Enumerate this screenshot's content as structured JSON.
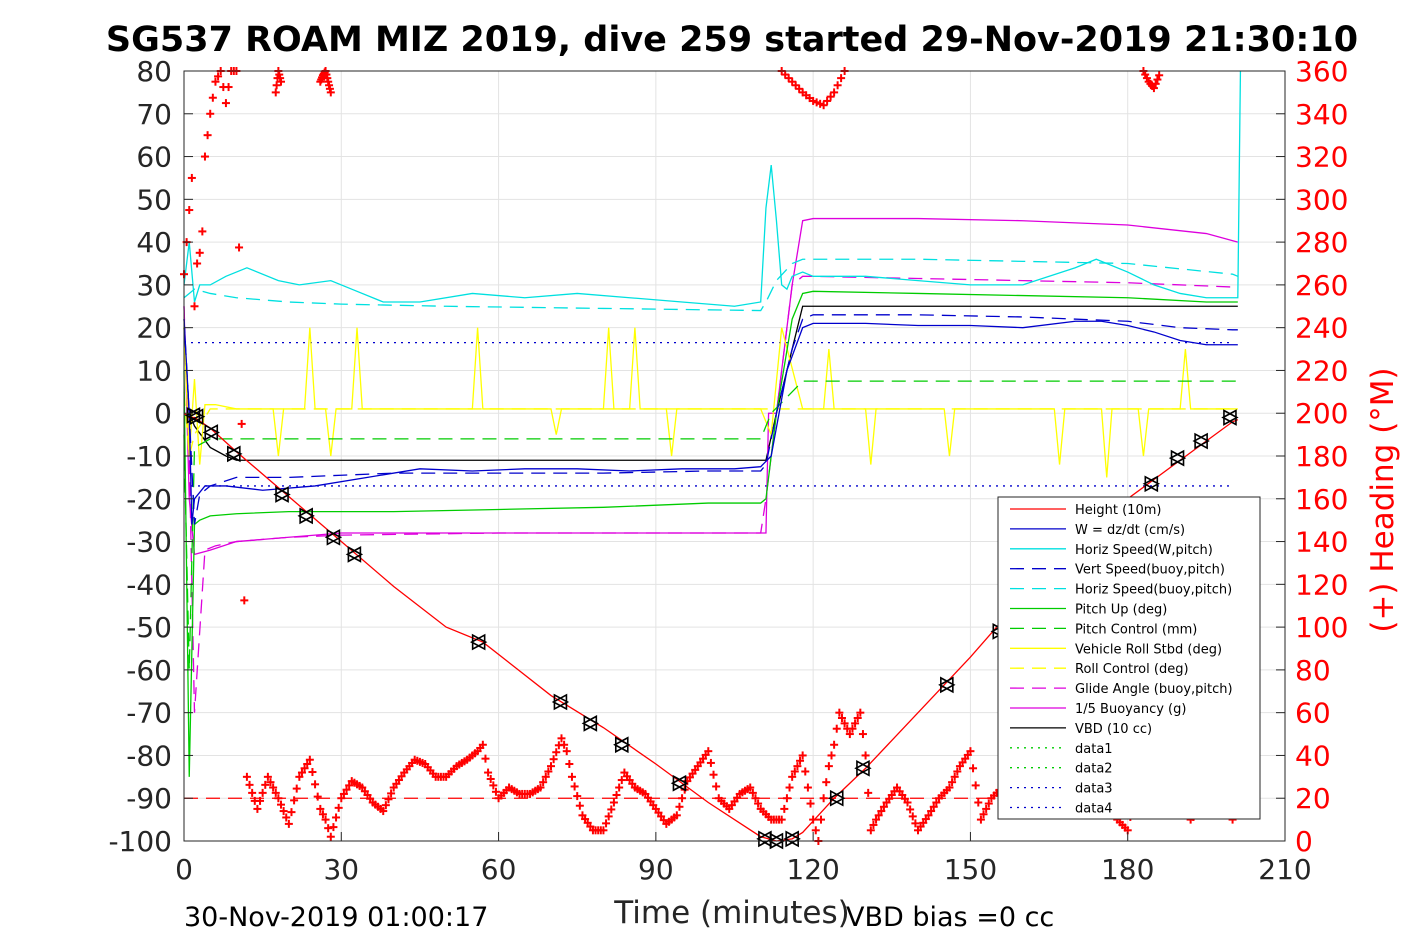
{
  "chart_data": {
    "type": "line",
    "title": "SG537 ROAM MIZ 2019, dive 259 started 29-Nov-2019 21:30:10",
    "xlabel": "Time (minutes)",
    "ylabel": "",
    "y2label": "(+) Heading (°M)",
    "xlim": [
      0,
      210
    ],
    "ylim": [
      -100,
      80
    ],
    "y2lim": [
      0,
      360
    ],
    "x_ticks": [
      0,
      30,
      60,
      90,
      120,
      150,
      180,
      210
    ],
    "y_ticks": [
      -100,
      -90,
      -80,
      -70,
      -60,
      -50,
      -40,
      -30,
      -20,
      -10,
      0,
      10,
      20,
      30,
      40,
      50,
      60,
      70,
      80
    ],
    "y2_ticks": [
      0,
      20,
      40,
      60,
      80,
      100,
      120,
      140,
      160,
      180,
      200,
      220,
      240,
      260,
      280,
      300,
      320,
      340,
      360
    ],
    "grid": true,
    "legend_position": "bottom-right",
    "footer_left": "30-Nov-2019 01:00:17",
    "footer_right": "VBD bias =0 cc",
    "colors": {
      "red": "#ff0000",
      "blue": "#0000cc",
      "cyan": "#00e0e0",
      "green": "#00cc00",
      "yellow": "#ffff00",
      "magenta": "#dd00dd",
      "black": "#000000"
    },
    "series": [
      {
        "name": "Height (10m)",
        "color": "#ff0000",
        "style": "solid",
        "x": [
          0,
          1,
          2,
          5,
          10,
          20,
          30,
          40,
          50,
          57,
          70,
          80,
          90,
          100,
          110,
          113,
          116,
          118,
          124,
          130,
          140,
          150,
          160,
          170,
          180,
          190,
          195,
          200,
          201
        ],
        "y": [
          0,
          -1,
          -1,
          -3.5,
          -9,
          -19.5,
          -30,
          -40.5,
          -50,
          -53.5,
          -66,
          -73.5,
          -82,
          -91,
          -99,
          -100,
          -99.5,
          -98,
          -90,
          -83,
          -70,
          -57,
          -43,
          -32,
          -20,
          -11,
          -6.5,
          -2,
          -1.5
        ]
      },
      {
        "name": "W = dz/dt (cm/s)",
        "color": "#0000cc",
        "style": "solid",
        "x": [
          0,
          1,
          1.5,
          2,
          4,
          8,
          15,
          25,
          35,
          45,
          55,
          65,
          75,
          85,
          95,
          105,
          110,
          112,
          115,
          118,
          120,
          130,
          140,
          150,
          160,
          170,
          175,
          180,
          185,
          190,
          195,
          200,
          201
        ],
        "y": [
          22,
          0,
          -26,
          -20,
          -17,
          -17,
          -18,
          -17,
          -15,
          -13,
          -13.5,
          -13,
          -13,
          -13.5,
          -13,
          -13,
          -12.5,
          -10,
          10,
          20,
          21,
          21,
          20.5,
          20.5,
          20,
          21.5,
          21.5,
          20.5,
          19,
          17,
          16,
          16,
          16
        ]
      },
      {
        "name": "Horiz Speed(W,pitch)",
        "color": "#00e0e0",
        "style": "solid",
        "x": [
          0,
          1,
          2,
          3,
          5,
          8,
          12,
          18,
          22,
          28,
          32,
          38,
          45,
          55,
          65,
          75,
          85,
          95,
          105,
          110,
          111,
          112,
          113,
          114,
          115,
          116,
          118,
          120,
          130,
          140,
          150,
          160,
          170,
          174,
          180,
          185,
          190,
          195,
          200,
          201,
          201.5
        ],
        "y": [
          30,
          40,
          26,
          30,
          30,
          32,
          34,
          31,
          30,
          31,
          29,
          26,
          26,
          28,
          27,
          28,
          27,
          26,
          25,
          26,
          48,
          58,
          45,
          30,
          29,
          32,
          33,
          32,
          32,
          31,
          30,
          30,
          34,
          36,
          33,
          30,
          28,
          27,
          27,
          27,
          80
        ]
      },
      {
        "name": "Vert Speed(buoy,pitch)",
        "color": "#0000cc",
        "style": "dashed",
        "x": [
          0,
          1,
          2,
          3,
          5,
          10,
          20,
          30,
          40,
          60,
          80,
          100,
          110,
          111,
          113,
          116,
          118,
          120,
          140,
          160,
          180,
          190,
          200,
          201
        ],
        "y": [
          22,
          0,
          -26,
          -19,
          -17,
          -15,
          -15,
          -14.5,
          -14,
          -14,
          -14,
          -13.5,
          -13.5,
          -12,
          0,
          15,
          22,
          23,
          23,
          22.5,
          21.5,
          20,
          19.5,
          19.5
        ]
      },
      {
        "name": "Horiz Speed(buoy,pitch)",
        "color": "#00e0e0",
        "style": "dashed",
        "x": [
          0,
          1,
          2,
          5,
          10,
          20,
          30,
          50,
          80,
          110,
          111,
          113,
          116,
          118,
          120,
          140,
          160,
          180,
          200,
          201
        ],
        "y": [
          27,
          28,
          29,
          28,
          27,
          26,
          25.5,
          25,
          24.5,
          24,
          26,
          31,
          35,
          36,
          36,
          36,
          35.5,
          35,
          32.5,
          32
        ]
      },
      {
        "name": "Pitch Up (deg)",
        "color": "#00cc00",
        "style": "solid",
        "x": [
          0,
          1,
          2,
          3,
          5,
          10,
          20,
          30,
          40,
          60,
          80,
          100,
          110,
          111,
          113,
          116,
          118,
          120,
          140,
          160,
          180,
          195,
          200,
          201
        ],
        "y": [
          10,
          -85,
          -26,
          -25,
          -24,
          -23.5,
          -23,
          -23,
          -23,
          -22.5,
          -22,
          -21,
          -21,
          -20,
          0,
          22,
          28,
          28.5,
          28,
          27.5,
          27,
          26,
          26,
          26
        ]
      },
      {
        "name": "Pitch Control (mm)",
        "color": "#00cc00",
        "style": "dashed",
        "x": [
          0,
          1,
          2,
          5,
          10,
          110,
          112,
          118,
          120,
          201
        ],
        "y": [
          -5,
          -60,
          -8,
          -6,
          -6,
          -6,
          0,
          7.5,
          7.5,
          7.5
        ]
      },
      {
        "name": "Vehicle Roll Stbd (deg)",
        "color": "#ffff00",
        "style": "solid",
        "x": [
          0,
          1,
          2,
          3,
          4,
          6,
          10,
          17,
          18,
          19,
          23,
          24,
          25,
          27,
          28,
          29,
          32,
          33,
          34,
          55,
          56,
          57,
          70,
          71,
          72,
          80,
          81,
          82,
          85,
          86,
          87,
          92,
          93,
          94,
          110,
          112,
          114,
          118,
          122,
          123,
          124,
          130,
          131,
          132,
          140,
          145,
          146,
          147,
          160,
          166,
          167,
          168,
          175,
          176,
          177,
          182,
          183,
          184,
          190,
          191,
          192,
          200,
          201
        ],
        "y": [
          20,
          -10,
          8,
          -12,
          2,
          2,
          1,
          1,
          -10,
          1,
          1,
          20,
          1,
          1,
          -10,
          1,
          1,
          20,
          1,
          1,
          20,
          1,
          1,
          -5,
          1,
          1,
          20,
          1,
          1,
          20,
          1,
          1,
          -10,
          1,
          1,
          -5,
          20,
          1,
          1,
          15,
          1,
          1,
          -12,
          1,
          1,
          1,
          -10,
          1,
          1,
          1,
          -12,
          1,
          1,
          -15,
          1,
          1,
          -10,
          1,
          1,
          15,
          1,
          1,
          1
        ]
      },
      {
        "name": "Roll Control (deg)",
        "color": "#ffff00",
        "style": "dashed",
        "x": [
          0,
          1,
          2,
          5,
          110,
          113,
          201
        ],
        "y": [
          5,
          -10,
          -5,
          1,
          1,
          1,
          1
        ]
      },
      {
        "name": "Glide Angle (buoy,pitch)",
        "color": "#dd00dd",
        "style": "dashed",
        "x": [
          0,
          1,
          2,
          4,
          6,
          10,
          20,
          30,
          60,
          90,
          110,
          111,
          113,
          116,
          118,
          120,
          140,
          160,
          180,
          200,
          201
        ],
        "y": [
          25,
          -10,
          -70,
          -32,
          -31,
          -30,
          -29,
          -28.5,
          -28,
          -28,
          -28,
          -20,
          0,
          30,
          32,
          32,
          31.5,
          31,
          30.5,
          29.5,
          29.5
        ]
      },
      {
        "name": "1/5 Buoyancy (g)",
        "color": "#dd00dd",
        "style": "solid",
        "x": [
          0,
          1,
          2,
          5,
          10,
          20,
          30,
          60,
          90,
          111,
          111.5,
          113,
          116,
          118,
          120,
          140,
          160,
          180,
          195,
          201
        ],
        "y": [
          25,
          -20,
          -33,
          -32,
          -30,
          -29,
          -28,
          -28,
          -28,
          -28,
          0,
          0,
          30,
          45,
          45.5,
          45.5,
          45,
          44,
          42,
          40
        ]
      },
      {
        "name": "VBD (10 cc)",
        "color": "#000000",
        "style": "solid",
        "x": [
          0,
          1,
          2,
          5,
          8,
          10,
          30,
          60,
          90,
          111,
          113,
          116,
          118,
          120,
          160,
          200,
          201
        ],
        "y": [
          20,
          0,
          -3,
          -8,
          -10,
          -11,
          -11,
          -11,
          -11,
          -11,
          0,
          15,
          25,
          25,
          25,
          25,
          25
        ]
      },
      {
        "name": "data1",
        "color": "#00cc00",
        "style": "dotted",
        "x": [],
        "y": []
      },
      {
        "name": "data2",
        "color": "#00cc00",
        "style": "dotted",
        "x": [],
        "y": []
      },
      {
        "name": "data3",
        "color": "#0000cc",
        "style": "dotted",
        "x": [
          0,
          200
        ],
        "y": [
          16.5,
          16.5
        ]
      },
      {
        "name": "data4",
        "color": "#0000cc",
        "style": "dotted",
        "x": [
          0,
          200
        ],
        "y": [
          -17,
          -17
        ]
      }
    ],
    "extra_lines": [
      {
        "color": "#ff0000",
        "style": "dashed",
        "x": [
          0,
          201
        ],
        "y": [
          -90,
          -90
        ]
      }
    ],
    "heading": {
      "color": "#ff0000",
      "marker": "+",
      "x": [
        0,
        0.5,
        1,
        1.5,
        2,
        2.5,
        3,
        3.5,
        4,
        5,
        6,
        7,
        8,
        9,
        10,
        12,
        14,
        16,
        18,
        20,
        22,
        24,
        26,
        27,
        28,
        30,
        32,
        34,
        36,
        38,
        40,
        42,
        44,
        46,
        48,
        50,
        52,
        54,
        56,
        57,
        58,
        60,
        62,
        64,
        66,
        68,
        70,
        72,
        73,
        74,
        76,
        78,
        80,
        82,
        84,
        86,
        88,
        90,
        92,
        94,
        96,
        98,
        100,
        102,
        104,
        106,
        108,
        110,
        112,
        114,
        116,
        118,
        120,
        121,
        122,
        123,
        124,
        125,
        126,
        127,
        128,
        129,
        130,
        131,
        132,
        134,
        136,
        138,
        140,
        142,
        144,
        146,
        148,
        150,
        152,
        154,
        156,
        158,
        160,
        162,
        164,
        166,
        168,
        170,
        172,
        174,
        176,
        178,
        180,
        182,
        184,
        186,
        188,
        190,
        192,
        194,
        196,
        198,
        200
      ],
      "y": [
        265,
        280,
        295,
        310,
        250,
        270,
        275,
        285,
        320,
        340,
        355,
        360,
        345,
        360,
        360,
        30,
        15,
        30,
        20,
        8,
        30,
        38,
        15,
        10,
        2,
        20,
        28,
        25,
        18,
        14,
        25,
        32,
        38,
        36,
        30,
        30,
        35,
        38,
        42,
        45,
        32,
        20,
        25,
        22,
        22,
        25,
        35,
        48,
        42,
        30,
        12,
        5,
        5,
        18,
        32,
        25,
        22,
        15,
        8,
        12,
        28,
        35,
        42,
        20,
        15,
        22,
        25,
        15,
        10,
        10,
        30,
        40,
        10,
        0,
        20,
        35,
        45,
        60,
        55,
        50,
        55,
        60,
        40,
        5,
        10,
        18,
        25,
        18,
        5,
        12,
        20,
        25,
        35,
        42,
        10,
        20,
        25,
        18,
        20,
        22,
        35,
        40,
        28,
        15,
        25,
        30,
        22,
        10,
        5,
        30,
        25,
        35,
        40,
        20,
        10,
        15,
        28,
        20,
        10
      ]
    },
    "heading_top": [
      {
        "x": [
          17.5,
          18,
          18.5
        ],
        "y": [
          350,
          360,
          355
        ]
      },
      {
        "x": [
          26,
          26.5,
          27,
          27.5,
          28
        ],
        "y": [
          355,
          358,
          360,
          355,
          350
        ]
      },
      {
        "x": [
          114,
          116,
          118,
          120,
          122,
          124,
          126
        ],
        "y": [
          360,
          355,
          350,
          346,
          344,
          350,
          360
        ]
      },
      {
        "x": [
          183,
          184,
          185,
          186
        ],
        "y": [
          360,
          355,
          352,
          358
        ]
      }
    ],
    "height_markers": {
      "x": [
        1.8,
        2.4,
        5.2,
        9.5,
        18.7,
        23.3,
        28.5,
        32.5,
        56.2,
        71.8,
        77.5,
        83.5,
        94.5,
        110.8,
        113,
        116,
        124.5,
        129.5,
        145.5,
        155.5,
        184.5,
        189.5,
        194,
        199.5
      ],
      "y": [
        -0.5,
        -0.8,
        -4.5,
        -9.5,
        -19,
        -24,
        -29,
        -33,
        -53.5,
        -67.5,
        -72.5,
        -77.5,
        -86.5,
        -99.5,
        -100,
        -99.5,
        -90,
        -83,
        -63.5,
        -51,
        -16.5,
        -10.5,
        -6.5,
        -1
      ]
    }
  }
}
